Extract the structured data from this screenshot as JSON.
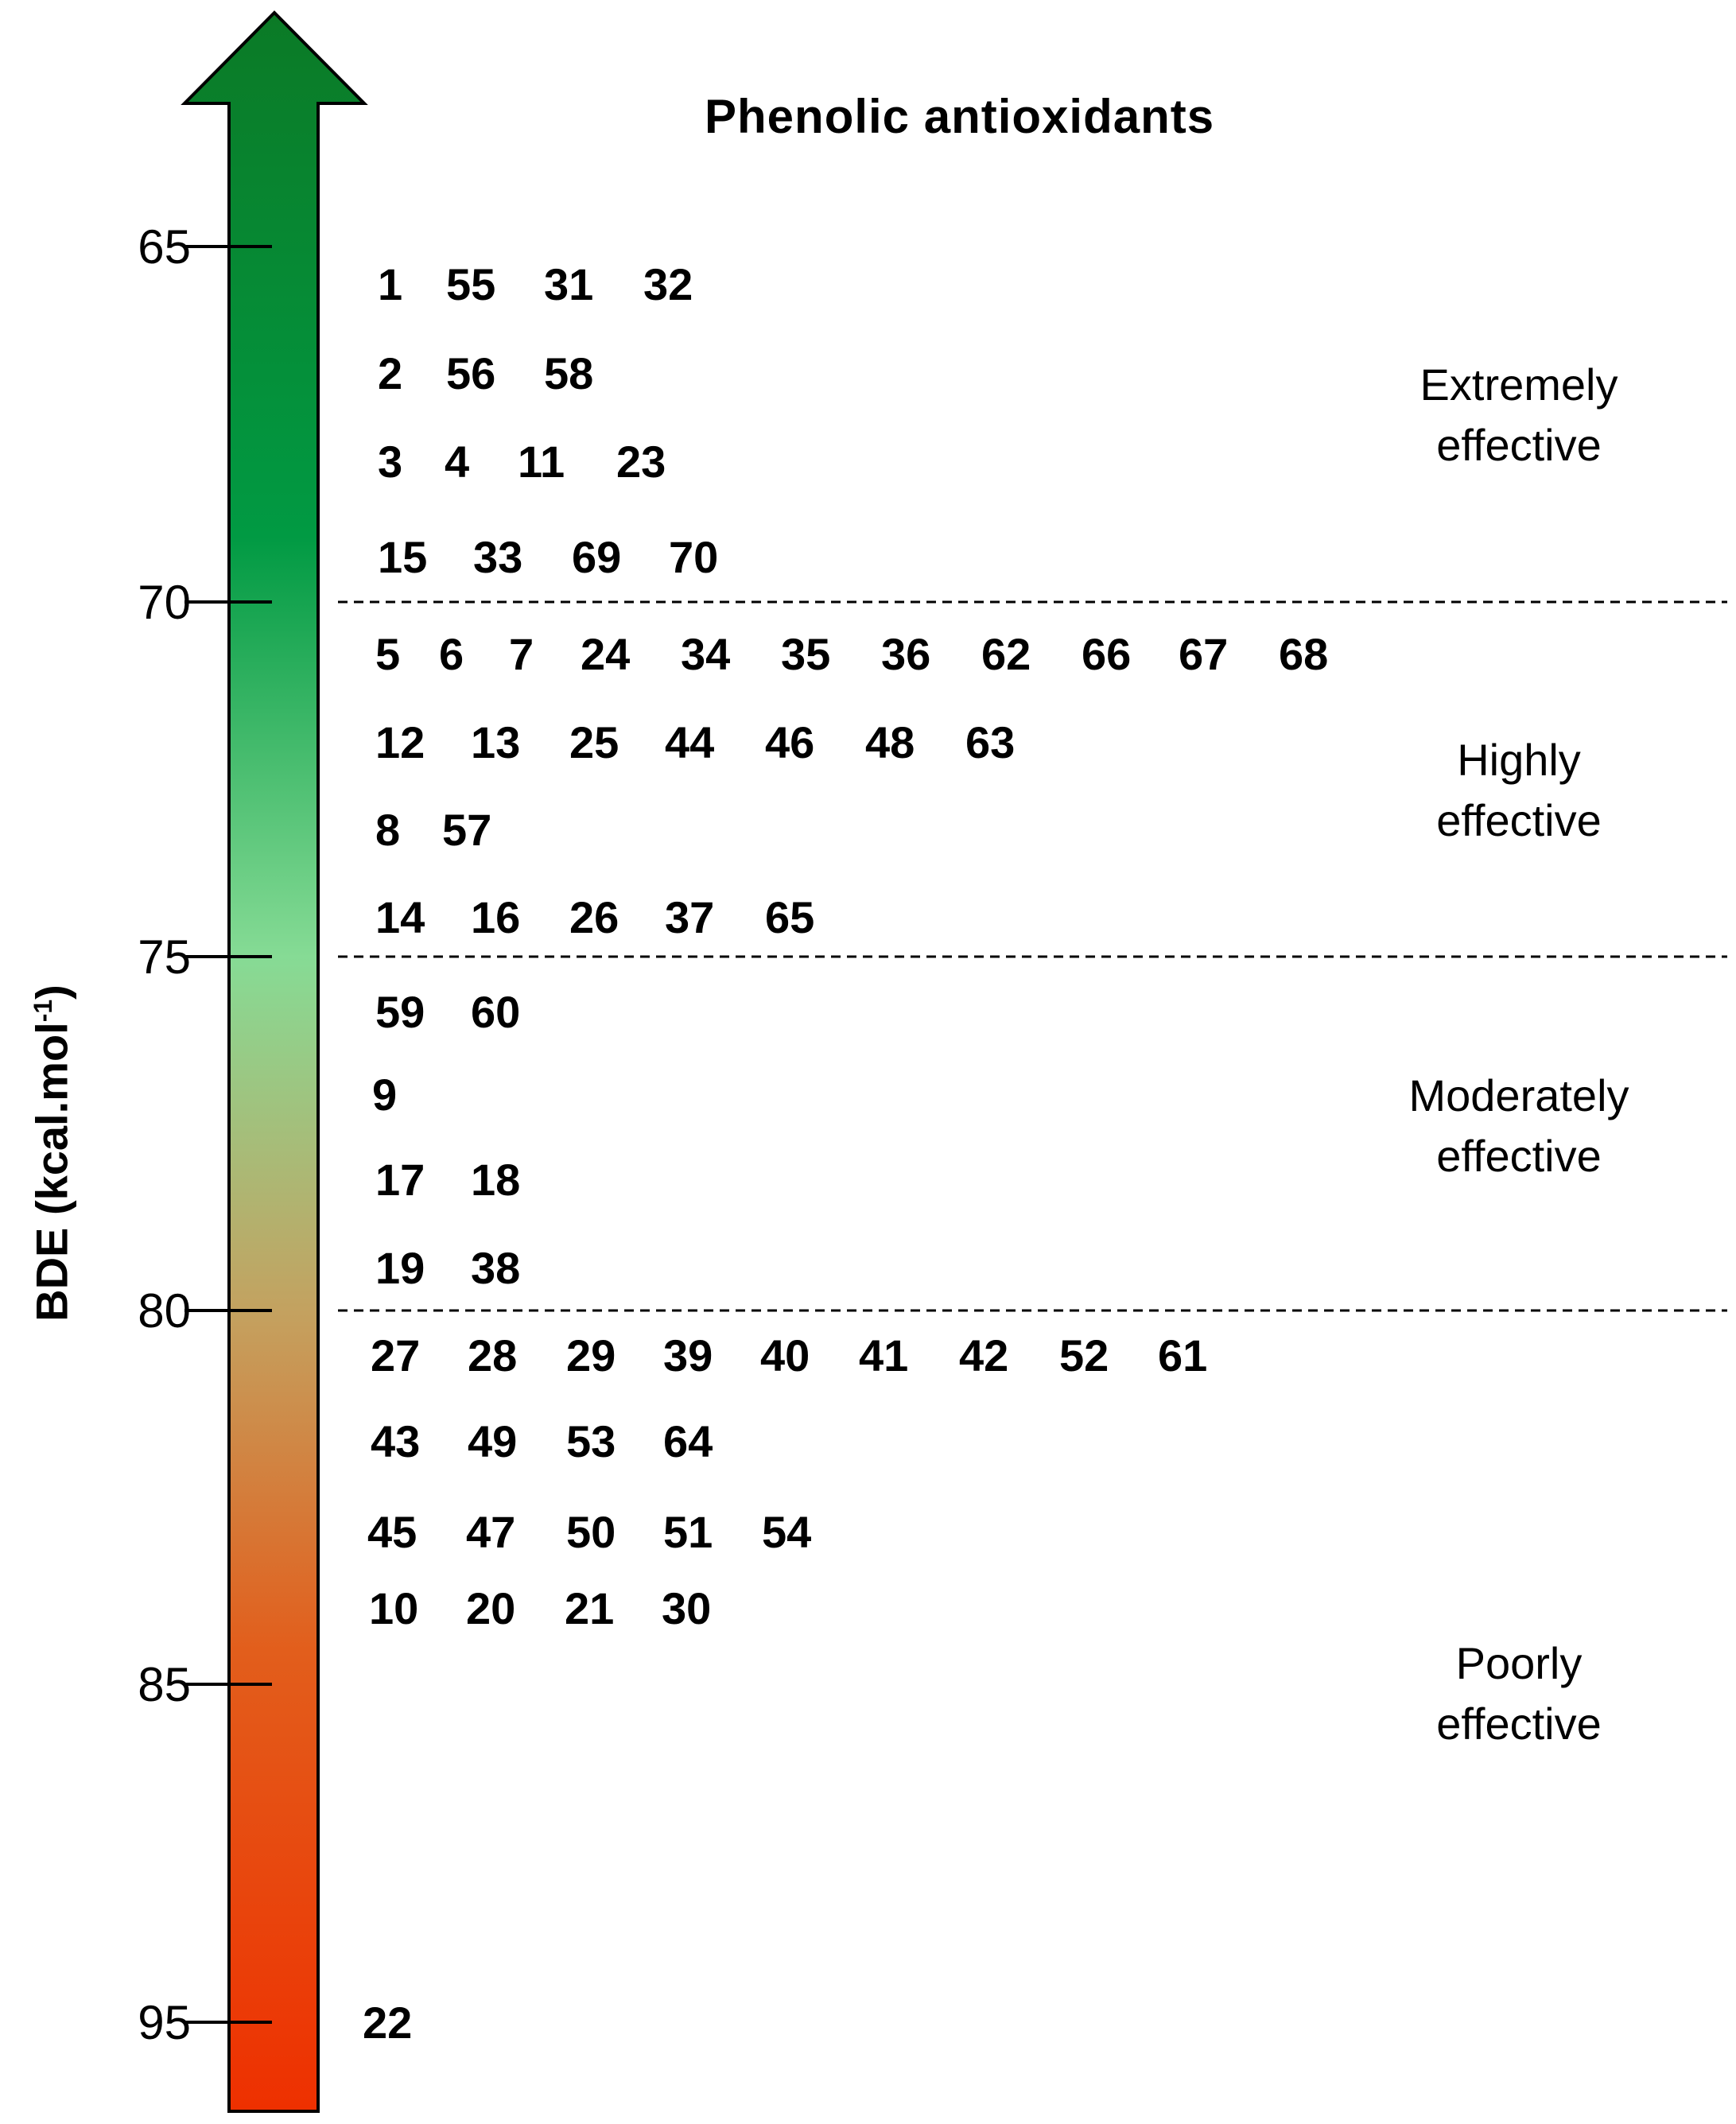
{
  "title": "Phenolic antioxidants",
  "axis": {
    "label": "BDE (kcal.mol",
    "label_sup": "-1",
    "label_close": ")",
    "ticks": [
      "65",
      "70",
      "75",
      "80",
      "85",
      "95"
    ]
  },
  "rows": [
    [
      "1",
      "55",
      "31",
      "32"
    ],
    [
      "2",
      "56",
      "58"
    ],
    [
      "3",
      "4",
      "11",
      "23"
    ],
    [
      "15",
      "33",
      "69",
      "70"
    ],
    [
      "5",
      "6",
      "7",
      "24",
      "34",
      "35",
      "36",
      "62",
      "66",
      "67",
      "68"
    ],
    [
      "12",
      "13",
      "25",
      "44",
      "46",
      "48",
      "63"
    ],
    [
      "8",
      "57"
    ],
    [
      "14",
      "16",
      "26",
      "37",
      "65"
    ],
    [
      "59",
      "60"
    ],
    [
      "9"
    ],
    [
      "17",
      "18"
    ],
    [
      "19",
      "38"
    ],
    [
      "27",
      "28",
      "29",
      "39",
      "40",
      "41",
      "42",
      "52",
      "61"
    ],
    [
      "43",
      "49",
      "53",
      "64"
    ],
    [
      "45",
      "47",
      "50",
      "51",
      "54"
    ],
    [
      "10",
      "20",
      "21",
      "30"
    ],
    [
      "22"
    ]
  ],
  "categories": [
    {
      "line1": "Extremely",
      "line2": "effective"
    },
    {
      "line1": "Highly",
      "line2": "effective"
    },
    {
      "line1": "Moderately",
      "line2": "effective"
    },
    {
      "line1": "Poorly",
      "line2": "effective"
    }
  ],
  "colors": {
    "arrow_top": "#0a7a2a",
    "arrow_mid": "#86d98f",
    "arrow_low": "#c0935a",
    "arrow_bottom": "#ea3300",
    "outline": "#000000"
  }
}
